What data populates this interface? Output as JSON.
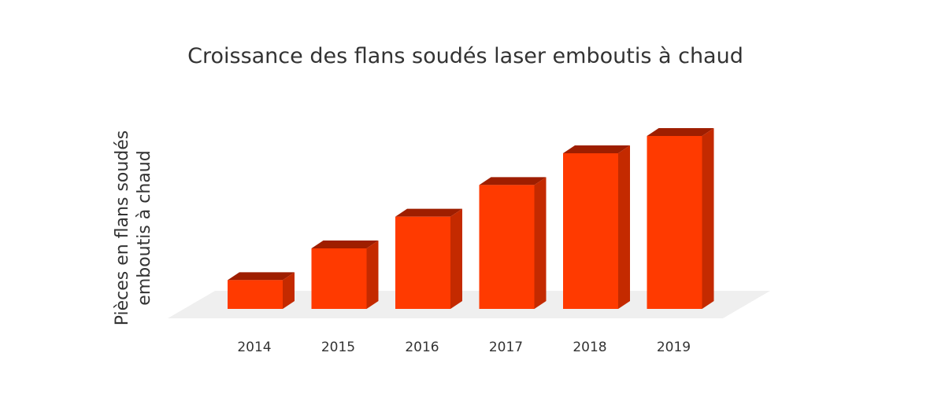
{
  "chart_data": {
    "type": "bar",
    "style": "3d",
    "title": "Croissance des flans soudés laser emboutis à chaud",
    "ylabel": [
      "Pièces en flans soudés",
      "emboutis à chaud"
    ],
    "xlabel": "",
    "categories": [
      "2014",
      "2015",
      "2016",
      "2017",
      "2018",
      "2019"
    ],
    "values": [
      1.0,
      2.1,
      3.2,
      4.3,
      5.4,
      6.0
    ],
    "ylim": [
      0,
      6.5
    ],
    "grid": false,
    "legend": "none",
    "colors": {
      "bar_front": "#FF3A00",
      "bar_top": "#9E1E00",
      "bar_side": "#C42A00",
      "floor": "#EFEFEF",
      "text": "#333333"
    }
  }
}
